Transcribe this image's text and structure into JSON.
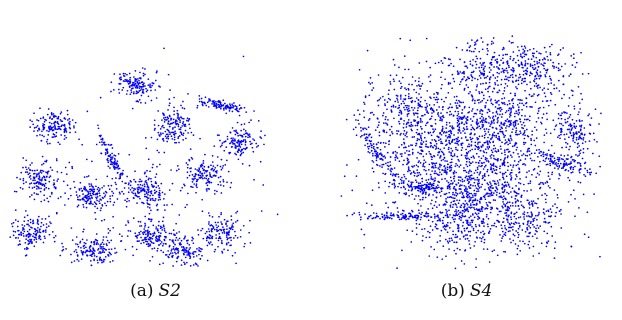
{
  "figure": {
    "point_color": "#0000ff",
    "subfigures": [
      {
        "tag": "(a)",
        "name": "S2"
      },
      {
        "tag": "(b)",
        "name": "S4"
      }
    ]
  },
  "chart_data": [
    {
      "type": "scatter",
      "title": "S2",
      "xlabel": "",
      "ylabel": "",
      "grid": false,
      "axes_visible": false,
      "legend": "none",
      "xlim": [
        0,
        100
      ],
      "ylim": [
        0,
        100
      ],
      "point_color": "#0000ff",
      "cluster_count": 15,
      "cluster_centers": [
        {
          "x": 45,
          "y": 80,
          "sx": 4.0,
          "sy": 3.5,
          "n": 150
        },
        {
          "x": 17,
          "y": 62,
          "sx": 4.0,
          "sy": 3.5,
          "n": 150
        },
        {
          "x": 59,
          "y": 62,
          "sx": 3.5,
          "sy": 4.5,
          "n": 150
        },
        {
          "x": 76,
          "y": 71,
          "sx": 4.5,
          "sy": 1.0,
          "n": 110,
          "angle": -18
        },
        {
          "x": 82,
          "y": 55,
          "sx": 3.5,
          "sy": 3.5,
          "n": 140
        },
        {
          "x": 37,
          "y": 48,
          "sx": 1.0,
          "sy": 6.5,
          "n": 100,
          "angle": 20
        },
        {
          "x": 12,
          "y": 38,
          "sx": 4.0,
          "sy": 4.0,
          "n": 150
        },
        {
          "x": 31,
          "y": 31,
          "sx": 4.0,
          "sy": 3.5,
          "n": 150
        },
        {
          "x": 50,
          "y": 33,
          "sx": 3.5,
          "sy": 4.0,
          "n": 150
        },
        {
          "x": 70,
          "y": 40,
          "sx": 3.5,
          "sy": 3.5,
          "n": 140
        },
        {
          "x": 9,
          "y": 15,
          "sx": 4.0,
          "sy": 4.0,
          "n": 150
        },
        {
          "x": 32,
          "y": 7,
          "sx": 5.0,
          "sy": 4.0,
          "n": 160
        },
        {
          "x": 51,
          "y": 14,
          "sx": 4.0,
          "sy": 4.0,
          "n": 150
        },
        {
          "x": 62,
          "y": 6,
          "sx": 4.0,
          "sy": 3.5,
          "n": 140
        },
        {
          "x": 76,
          "y": 15,
          "sx": 4.0,
          "sy": 4.0,
          "n": 140
        }
      ],
      "background_points": 120
    },
    {
      "type": "scatter",
      "title": "S4",
      "xlabel": "",
      "ylabel": "",
      "grid": false,
      "axes_visible": false,
      "legend": "none",
      "xlim": [
        0,
        100
      ],
      "ylim": [
        0,
        100
      ],
      "point_color": "#0000ff",
      "cluster_count": 15,
      "cluster_centers": [
        {
          "x": 56,
          "y": 85,
          "sx": 8.0,
          "sy": 7.0,
          "n": 220
        },
        {
          "x": 75,
          "y": 86,
          "sx": 7.0,
          "sy": 6.0,
          "n": 180
        },
        {
          "x": 24,
          "y": 70,
          "sx": 8.0,
          "sy": 8.0,
          "n": 200
        },
        {
          "x": 44,
          "y": 63,
          "sx": 8.0,
          "sy": 7.0,
          "n": 220
        },
        {
          "x": 63,
          "y": 66,
          "sx": 7.0,
          "sy": 7.0,
          "n": 200
        },
        {
          "x": 89,
          "y": 60,
          "sx": 3.5,
          "sy": 5.5,
          "n": 120
        },
        {
          "x": 14,
          "y": 50,
          "sx": 1.5,
          "sy": 8.0,
          "n": 110,
          "angle": 30
        },
        {
          "x": 33,
          "y": 44,
          "sx": 8.0,
          "sy": 8.0,
          "n": 220
        },
        {
          "x": 58,
          "y": 42,
          "sx": 8.0,
          "sy": 8.0,
          "n": 220
        },
        {
          "x": 84,
          "y": 46,
          "sx": 6.0,
          "sy": 1.5,
          "n": 120,
          "angle": -20
        },
        {
          "x": 32,
          "y": 35,
          "sx": 4.0,
          "sy": 1.2,
          "n": 90
        },
        {
          "x": 23,
          "y": 23,
          "sx": 9.0,
          "sy": 0.8,
          "n": 120
        },
        {
          "x": 47,
          "y": 19,
          "sx": 8.0,
          "sy": 7.0,
          "n": 200
        },
        {
          "x": 70,
          "y": 23,
          "sx": 7.0,
          "sy": 7.0,
          "n": 200
        },
        {
          "x": 48,
          "y": 30,
          "sx": 6.0,
          "sy": 6.0,
          "n": 160
        }
      ],
      "background_points": 900
    }
  ]
}
